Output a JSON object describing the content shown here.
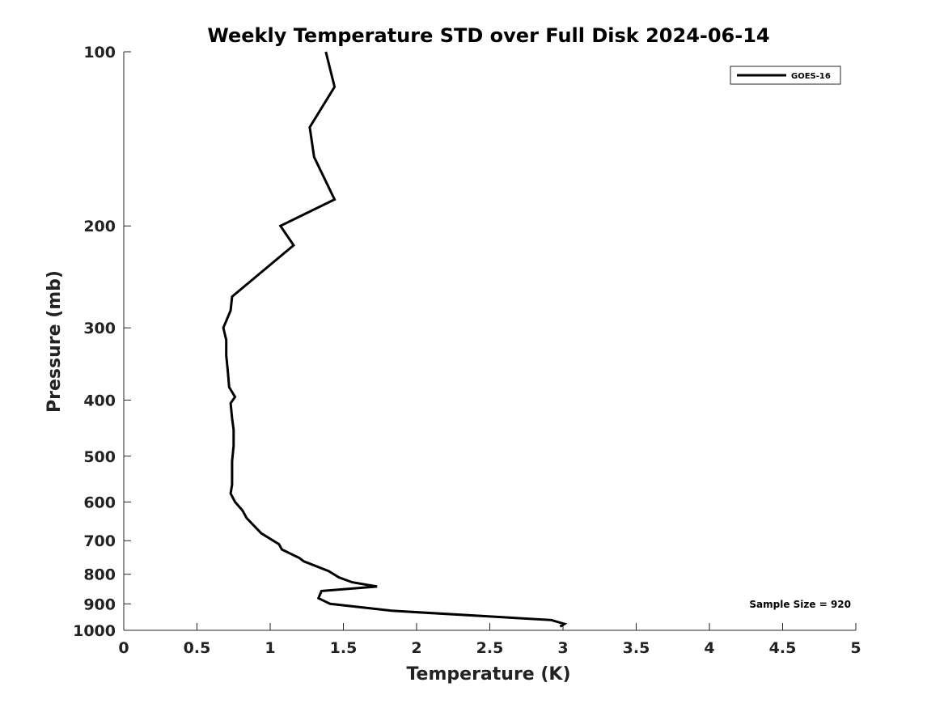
{
  "chart_data": {
    "type": "line",
    "title": "Weekly Temperature STD over Full Disk 2024-06-14",
    "xlabel": "Temperature (K)",
    "ylabel": "Pressure (mb)",
    "xlim": [
      0,
      5
    ],
    "ylim": [
      100,
      1000
    ],
    "yscale": "log",
    "y_reversed": true,
    "grid": false,
    "xticks": [
      0,
      0.5,
      1,
      1.5,
      2,
      2.5,
      3,
      3.5,
      4,
      4.5,
      5
    ],
    "xtick_labels": [
      "0",
      "0.5",
      "1",
      "1.5",
      "2",
      "2.5",
      "3",
      "3.5",
      "4",
      "4.5",
      "5"
    ],
    "yticks": [
      100,
      200,
      300,
      400,
      500,
      600,
      700,
      800,
      900,
      1000
    ],
    "ytick_labels": [
      "100",
      "200",
      "300",
      "400",
      "500",
      "600",
      "700",
      "800",
      "900",
      "1000"
    ],
    "legend_position": "top-right",
    "series": [
      {
        "name": "GOES-16",
        "color": "#000000",
        "x": [
          1.38,
          1.44,
          1.27,
          1.3,
          1.44,
          1.07,
          1.16,
          0.74,
          0.73,
          0.68,
          0.7,
          0.7,
          0.71,
          0.72,
          0.76,
          0.73,
          0.74,
          0.75,
          0.75,
          0.74,
          0.74,
          0.74,
          0.73,
          0.76,
          0.81,
          0.84,
          0.94,
          1.06,
          1.08,
          1.2,
          1.23,
          1.4,
          1.47,
          1.56,
          1.73,
          1.35,
          1.33,
          1.41,
          1.83,
          2.92,
          3.01,
          2.98
        ],
        "y": [
          100,
          115,
          135,
          152,
          180,
          200,
          216,
          265,
          280,
          300,
          315,
          335,
          355,
          380,
          395,
          405,
          430,
          450,
          480,
          510,
          540,
          560,
          580,
          600,
          620,
          640,
          680,
          710,
          725,
          750,
          760,
          790,
          810,
          826,
          840,
          855,
          880,
          900,
          925,
          960,
          975,
          985
        ]
      }
    ],
    "annotations": [
      "Sample Size = 920"
    ]
  }
}
